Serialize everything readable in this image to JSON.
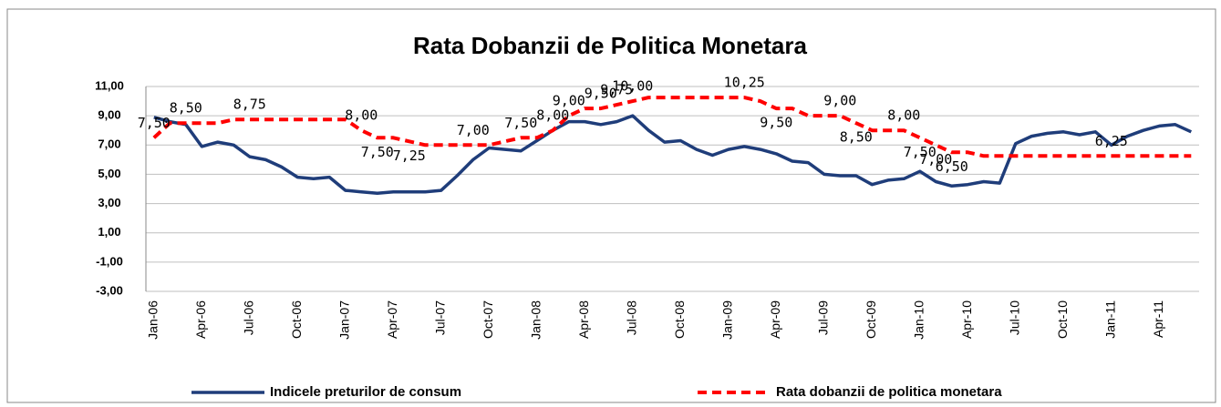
{
  "chart_data": {
    "type": "line",
    "title": "Rata Dobanzii de Politica Monetara",
    "categories": [
      "Jan-06",
      null,
      null,
      "Apr-06",
      null,
      null,
      "Jul-06",
      null,
      null,
      "Oct-06",
      null,
      null,
      "Jan-07",
      null,
      null,
      "Apr-07",
      null,
      null,
      "Jul-07",
      null,
      null,
      "Oct-07",
      null,
      null,
      "Jan-08",
      null,
      null,
      "Apr-08",
      null,
      null,
      "Jul-08",
      null,
      null,
      "Oct-08",
      null,
      null,
      "Jan-09",
      null,
      null,
      "Apr-09",
      null,
      null,
      "Jul-09",
      null,
      null,
      "Oct-09",
      null,
      null,
      "Jan-10",
      null,
      null,
      "Apr-10",
      null,
      null,
      "Jul-10",
      null,
      null,
      "Oct-10",
      null,
      null,
      "Jan-11",
      null,
      null,
      "Apr-11",
      null,
      null
    ],
    "series": [
      {
        "name": "Indicele preturilor de consum",
        "color": "#1f3d7a",
        "dash": false,
        "values": [
          8.9,
          8.6,
          8.4,
          6.9,
          7.2,
          7.0,
          6.2,
          6.0,
          5.5,
          4.8,
          4.7,
          4.8,
          3.9,
          3.8,
          3.7,
          3.8,
          3.8,
          3.8,
          3.9,
          4.9,
          6.0,
          6.8,
          6.7,
          6.6,
          7.3,
          8.0,
          8.6,
          8.6,
          8.4,
          8.6,
          9.0,
          8.0,
          7.2,
          7.3,
          6.7,
          6.3,
          6.7,
          6.9,
          6.7,
          6.4,
          5.9,
          5.8,
          5.0,
          4.9,
          4.9,
          4.3,
          4.6,
          4.7,
          5.2,
          4.5,
          4.2,
          4.3,
          4.5,
          4.4,
          7.1,
          7.6,
          7.8,
          7.9,
          7.7,
          7.9,
          7.0,
          7.6,
          8.0,
          8.3,
          8.4,
          7.9
        ]
      },
      {
        "name": "Rata dobanzii de politica monetara",
        "color": "#ff0000",
        "dash": true,
        "values": [
          7.5,
          8.5,
          8.5,
          8.5,
          8.5,
          8.75,
          8.75,
          8.75,
          8.75,
          8.75,
          8.75,
          8.75,
          8.75,
          8.0,
          7.5,
          7.5,
          7.25,
          7.0,
          7.0,
          7.0,
          7.0,
          7.0,
          7.25,
          7.5,
          7.5,
          8.0,
          9.0,
          9.5,
          9.5,
          9.75,
          10.0,
          10.25,
          10.25,
          10.25,
          10.25,
          10.25,
          10.25,
          10.25,
          10.0,
          9.5,
          9.5,
          9.0,
          9.0,
          9.0,
          8.5,
          8.0,
          8.0,
          8.0,
          7.5,
          7.0,
          6.5,
          6.5,
          6.25,
          6.25,
          6.25,
          6.25,
          6.25,
          6.25,
          6.25,
          6.25,
          6.25,
          6.25,
          6.25,
          6.25,
          6.25,
          6.25
        ],
        "value_labels": [
          "7,50",
          null,
          "8,50",
          null,
          null,
          null,
          "8,75",
          null,
          null,
          null,
          null,
          null,
          null,
          "8,00",
          "7,50",
          null,
          "7,25",
          null,
          null,
          null,
          "7,00",
          null,
          null,
          "7,50",
          null,
          "8,00",
          "9,00",
          null,
          "9,50",
          "9,75",
          "10,00",
          null,
          null,
          null,
          null,
          null,
          null,
          "10,25",
          null,
          "9,50",
          null,
          null,
          null,
          "9,00",
          "8,50",
          null,
          null,
          "8,00",
          "7,50",
          "7,00",
          "6,50",
          null,
          null,
          null,
          null,
          null,
          null,
          null,
          null,
          null,
          "6,25",
          null,
          null,
          null,
          null,
          null
        ]
      }
    ],
    "ylim": [
      -3,
      11
    ],
    "yticks": [
      {
        "value": -3,
        "label": "-3,00"
      },
      {
        "value": -1,
        "label": "-1,00"
      },
      {
        "value": 1,
        "label": "1,00"
      },
      {
        "value": 3,
        "label": "3,00"
      },
      {
        "value": 5,
        "label": "5,00"
      },
      {
        "value": 7,
        "label": "7,00"
      },
      {
        "value": 9,
        "label": "9,00"
      },
      {
        "value": 11,
        "label": "11,00"
      }
    ],
    "grid": true,
    "legend": "bottom"
  }
}
